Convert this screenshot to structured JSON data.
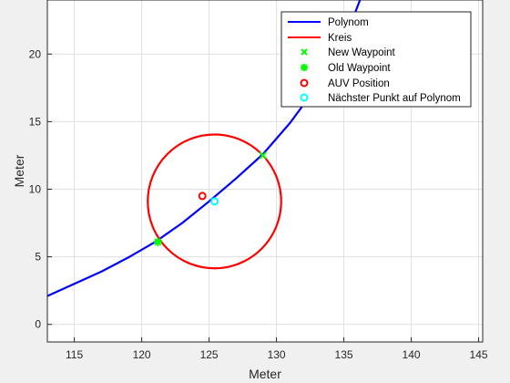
{
  "chart_data": {
    "type": "line",
    "xlabel": "Meter",
    "ylabel": "Meter",
    "xlim": [
      113,
      145.3
    ],
    "ylim": [
      -1.3,
      24
    ],
    "xticks": [
      115,
      120,
      125,
      130,
      135,
      140,
      145
    ],
    "yticks": [
      0,
      5,
      10,
      15,
      20
    ],
    "grid": true,
    "legend_position": "top-right",
    "colors": {
      "polynom": "#0000ff",
      "kreis": "#ff0000",
      "new_waypoint": "#00ff00",
      "old_waypoint": "#00ff00",
      "auv_position": "#ff0000",
      "naechster_punkt": "#00ffff"
    },
    "series": [
      {
        "name": "Polynom",
        "type": "line",
        "x": [
          113,
          115,
          117,
          119,
          121,
          123,
          125,
          127,
          129,
          131,
          133,
          135,
          136.2
        ],
        "y": [
          2.1,
          3.0,
          3.9,
          4.95,
          6.1,
          7.5,
          9.1,
          10.8,
          12.6,
          14.9,
          17.6,
          20.9,
          24.0
        ]
      },
      {
        "name": "Kreis",
        "type": "circle",
        "center": [
          125.4,
          9.1
        ],
        "radius": 4.95
      },
      {
        "name": "New Waypoint",
        "type": "marker",
        "marker": "x",
        "points": [
          [
            129.0,
            12.5
          ]
        ]
      },
      {
        "name": "Old Waypoint",
        "type": "marker",
        "marker": "asterisk",
        "points": [
          [
            121.2,
            6.1
          ]
        ]
      },
      {
        "name": "AUV Position",
        "type": "marker",
        "marker": "circle",
        "points": [
          [
            124.5,
            9.5
          ]
        ]
      },
      {
        "name": "Nächster Punkt auf Polynom",
        "type": "marker",
        "marker": "circle",
        "points": [
          [
            125.4,
            9.1
          ]
        ]
      }
    ]
  }
}
